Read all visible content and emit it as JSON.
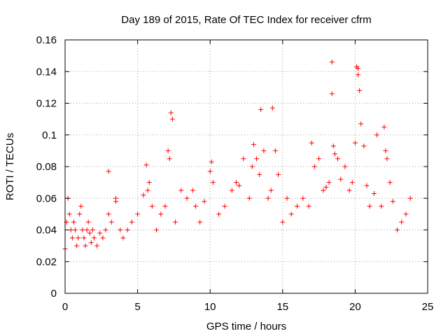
{
  "chart_data": {
    "type": "scatter",
    "title": "Day 189 of 2015, Rate Of TEC Index for receiver cfrm",
    "xlabel": "GPS time / hours",
    "ylabel": "ROTI / TECUs",
    "xlim": [
      0,
      25
    ],
    "ylim": [
      0,
      0.16
    ],
    "xticks": [
      0,
      5,
      10,
      15,
      20,
      25
    ],
    "yticks": [
      0,
      0.02,
      0.04,
      0.06,
      0.08,
      0.1,
      0.12,
      0.14,
      0.16
    ],
    "xtick_labels": [
      "0",
      "5",
      "10",
      "15",
      "20",
      "25"
    ],
    "ytick_labels": [
      "0",
      "0.02",
      "0.04",
      "0.06",
      "0.08",
      "0.1",
      "0.12",
      "0.14",
      "0.16"
    ],
    "grid": true,
    "marker": "+",
    "marker_color": "#ff0000",
    "x_data_range": [
      0,
      23.8
    ],
    "series": [
      {
        "name": "ROTI",
        "x": [
          0.0,
          0.1,
          0.2,
          0.3,
          0.4,
          0.5,
          0.6,
          0.7,
          0.8,
          0.9,
          1.0,
          1.1,
          1.2,
          1.3,
          1.4,
          1.5,
          1.6,
          1.7,
          1.8,
          1.9,
          2.0,
          2.2,
          2.4,
          2.6,
          2.8,
          3.0,
          3.0,
          3.2,
          3.5,
          3.5,
          3.8,
          4.0,
          4.3,
          4.6,
          5.0,
          5.4,
          5.6,
          5.7,
          5.8,
          6.0,
          6.3,
          6.6,
          6.9,
          7.1,
          7.2,
          7.3,
          7.4,
          7.6,
          8.0,
          8.4,
          8.8,
          9.0,
          9.3,
          9.6,
          10.0,
          10.1,
          10.2,
          10.6,
          11.0,
          11.5,
          11.8,
          12.0,
          12.3,
          12.7,
          12.9,
          13.0,
          13.2,
          13.4,
          13.5,
          13.7,
          14.0,
          14.2,
          14.3,
          14.5,
          14.7,
          15.0,
          15.3,
          15.6,
          16.0,
          16.4,
          16.8,
          17.0,
          17.2,
          17.5,
          17.8,
          18.0,
          18.2,
          18.4,
          18.4,
          18.5,
          18.6,
          18.8,
          19.0,
          19.3,
          19.6,
          19.8,
          20.0,
          20.1,
          20.2,
          20.2,
          20.3,
          20.4,
          20.6,
          20.8,
          21.0,
          21.3,
          21.5,
          21.8,
          22.0,
          22.1,
          22.2,
          22.4,
          22.6,
          22.9,
          23.2,
          23.5,
          23.8
        ],
        "y": [
          0.028,
          0.045,
          0.06,
          0.05,
          0.04,
          0.035,
          0.045,
          0.04,
          0.03,
          0.035,
          0.05,
          0.055,
          0.04,
          0.035,
          0.03,
          0.04,
          0.045,
          0.038,
          0.032,
          0.04,
          0.035,
          0.03,
          0.038,
          0.035,
          0.04,
          0.077,
          0.05,
          0.045,
          0.06,
          0.058,
          0.04,
          0.035,
          0.04,
          0.045,
          0.05,
          0.062,
          0.081,
          0.065,
          0.07,
          0.055,
          0.04,
          0.05,
          0.055,
          0.09,
          0.085,
          0.114,
          0.11,
          0.045,
          0.065,
          0.06,
          0.065,
          0.055,
          0.045,
          0.058,
          0.077,
          0.083,
          0.07,
          0.05,
          0.055,
          0.065,
          0.07,
          0.068,
          0.085,
          0.06,
          0.08,
          0.094,
          0.085,
          0.075,
          0.116,
          0.09,
          0.06,
          0.065,
          0.117,
          0.09,
          0.075,
          0.045,
          0.06,
          0.05,
          0.055,
          0.06,
          0.055,
          0.095,
          0.08,
          0.085,
          0.065,
          0.067,
          0.07,
          0.146,
          0.126,
          0.093,
          0.088,
          0.085,
          0.072,
          0.08,
          0.065,
          0.07,
          0.095,
          0.143,
          0.142,
          0.138,
          0.128,
          0.107,
          0.093,
          0.068,
          0.055,
          0.063,
          0.1,
          0.055,
          0.105,
          0.09,
          0.085,
          0.07,
          0.058,
          0.04,
          0.045,
          0.05,
          0.06
        ]
      }
    ]
  }
}
